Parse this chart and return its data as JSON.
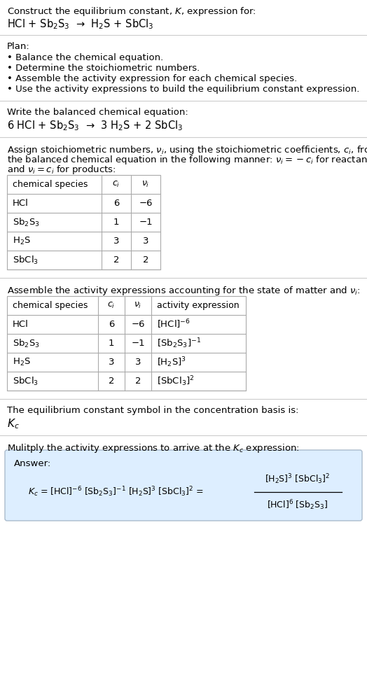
{
  "title_line1": "Construct the equilibrium constant, $K$, expression for:",
  "title_line2": "HCl + Sb$_2$S$_3$  →  H$_2$S + SbCl$_3$",
  "plan_header": "Plan:",
  "plan_items": [
    "• Balance the chemical equation.",
    "• Determine the stoichiometric numbers.",
    "• Assemble the activity expression for each chemical species.",
    "• Use the activity expressions to build the equilibrium constant expression."
  ],
  "balanced_header": "Write the balanced chemical equation:",
  "balanced_eq": "6 HCl + Sb$_2$S$_3$  →  3 H$_2$S + 2 SbCl$_3$",
  "stoich_intro1": "Assign stoichiometric numbers, $\\nu_i$, using the stoichiometric coefficients, $c_i$, from",
  "stoich_intro2": "the balanced chemical equation in the following manner: $\\nu_i = -c_i$ for reactants",
  "stoich_intro3": "and $\\nu_i = c_i$ for products:",
  "table1_headers": [
    "chemical species",
    "$c_i$",
    "$\\nu_i$"
  ],
  "table1_rows": [
    [
      "HCl",
      "6",
      "−6"
    ],
    [
      "Sb$_2$S$_3$",
      "1",
      "−1"
    ],
    [
      "H$_2$S",
      "3",
      "3"
    ],
    [
      "SbCl$_3$",
      "2",
      "2"
    ]
  ],
  "activity_intro": "Assemble the activity expressions accounting for the state of matter and $\\nu_i$:",
  "table2_headers": [
    "chemical species",
    "$c_i$",
    "$\\nu_i$",
    "activity expression"
  ],
  "table2_rows": [
    [
      "HCl",
      "6",
      "−6",
      "[HCl]$^{-6}$"
    ],
    [
      "Sb$_2$S$_3$",
      "1",
      "−1",
      "[Sb$_2$S$_3$]$^{-1}$"
    ],
    [
      "H$_2$S",
      "3",
      "3",
      "[H$_2$S]$^3$"
    ],
    [
      "SbCl$_3$",
      "2",
      "2",
      "[SbCl$_3$]$^2$"
    ]
  ],
  "kc_intro": "The equilibrium constant symbol in the concentration basis is:",
  "kc_symbol": "$K_c$",
  "multiply_intro": "Mulitply the activity expressions to arrive at the $K_c$ expression:",
  "answer_label": "Answer:",
  "answer_lhs": "$K_c$ = [HCl]$^{-6}$ [Sb$_2$S$_3$]$^{-1}$ [H$_2$S]$^3$ [SbCl$_3$]$^2$ =",
  "frac_num": "[H$_2$S]$^3$ [SbCl$_3$]$^2$",
  "frac_den": "[HCl]$^6$ [Sb$_2$S$_3$]",
  "bg_color": "#ffffff",
  "text_color": "#000000",
  "line_color": "#cccccc",
  "table_line_color": "#aaaaaa",
  "answer_box_face": "#ddeeff",
  "answer_box_edge": "#aabbcc",
  "font_size": 9.5
}
